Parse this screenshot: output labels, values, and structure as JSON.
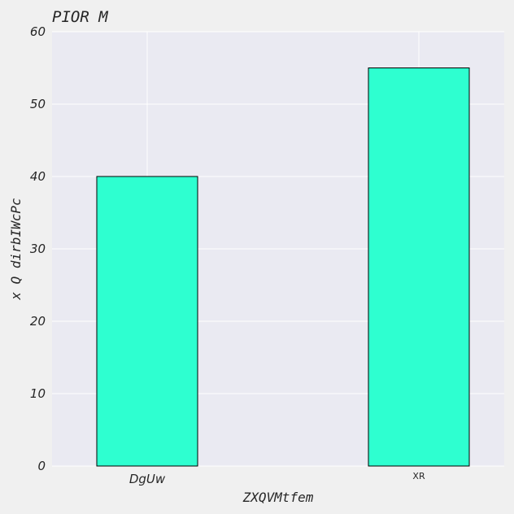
{
  "chart_data": {
    "type": "bar",
    "title": "PIOR M",
    "xlabel": "ZXQVMtfem",
    "ylabel": "x Q dirbIWcPc",
    "categories": [
      "DgUw",
      "XR"
    ],
    "values": [
      40,
      55
    ],
    "ylim": [
      0,
      60
    ],
    "yticks": [
      0,
      10,
      20,
      30,
      40,
      50,
      60
    ],
    "grid": true,
    "bar_color": "#2effd0",
    "bar_edge_color": "#000000",
    "plot_background": "#eaeaf2",
    "figure_background": "#f0f0f0"
  }
}
